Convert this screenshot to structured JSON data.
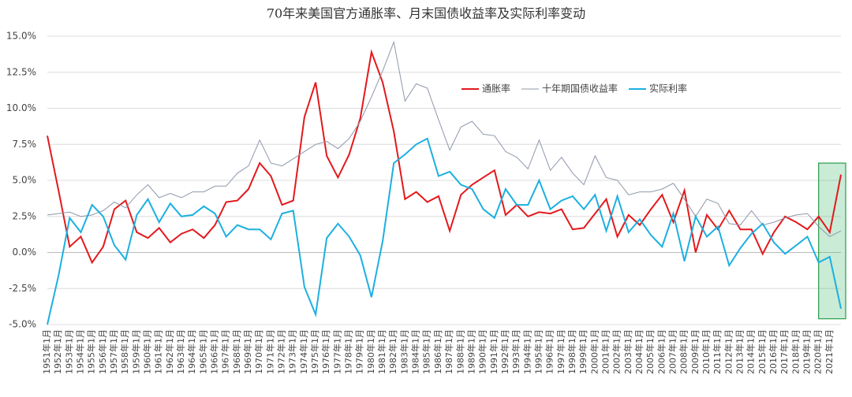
{
  "chart_data": {
    "type": "line",
    "title": "70年来美国官方通胀率、月末国债收益率及实际利率变动",
    "categories": [
      "1951年1月",
      "1952年1月",
      "1953年1月",
      "1954年1月",
      "1955年1月",
      "1956年1月",
      "1957年1月",
      "1958年1月",
      "1959年1月",
      "1960年1月",
      "1961年1月",
      "1962年1月",
      "1963年1月",
      "1964年1月",
      "1965年1月",
      "1966年1月",
      "1967年1月",
      "1968年1月",
      "1969年1月",
      "1970年1月",
      "1971年1月",
      "1972年1月",
      "1973年1月",
      "1974年1月",
      "1975年1月",
      "1976年1月",
      "1977年1月",
      "1978年1月",
      "1979年1月",
      "1980年1月",
      "1981年1月",
      "1982年1月",
      "1983年1月",
      "1984年1月",
      "1985年1月",
      "1986年1月",
      "1987年1月",
      "1988年1月",
      "1989年1月",
      "1990年1月",
      "1991年1月",
      "1992年1月",
      "1993年1月",
      "1994年1月",
      "1995年1月",
      "1996年1月",
      "1997年1月",
      "1998年1月",
      "1999年1月",
      "2000年1月",
      "2001年1月",
      "2002年1月",
      "2003年1月",
      "2004年1月",
      "2005年1月",
      "2006年1月",
      "2007年1月",
      "2008年1月",
      "2009年1月",
      "2010年1月",
      "2011年1月",
      "2012年1月",
      "2013年1月",
      "2014年1月",
      "2015年1月",
      "2016年1月",
      "2017年1月",
      "2018年1月",
      "2019年1月",
      "2020年1月",
      "2021年1月",
      null
    ],
    "series": [
      {
        "name": "通胀率",
        "color": "#e3191c",
        "values": [
          8.1,
          4.3,
          0.4,
          1.1,
          -0.7,
          0.4,
          3.0,
          3.6,
          1.4,
          1.0,
          1.7,
          0.7,
          1.3,
          1.6,
          1.0,
          1.9,
          3.5,
          3.6,
          4.4,
          6.2,
          5.3,
          3.3,
          3.6,
          9.4,
          11.8,
          6.7,
          5.2,
          6.8,
          9.3,
          13.9,
          11.8,
          8.4,
          3.7,
          4.2,
          3.5,
          3.9,
          1.5,
          4.0,
          4.7,
          5.2,
          5.7,
          2.6,
          3.3,
          2.5,
          2.8,
          2.7,
          3.0,
          1.6,
          1.7,
          2.7,
          3.7,
          1.1,
          2.6,
          1.9,
          3.0,
          4.0,
          2.1,
          4.3,
          0.0,
          2.6,
          1.6,
          2.9,
          1.6,
          1.6,
          -0.1,
          1.4,
          2.5,
          2.1,
          1.6,
          2.5,
          1.4,
          5.4
        ]
      },
      {
        "name": "十年期国债收益率",
        "color": "#8e98aa",
        "values": [
          2.6,
          2.7,
          2.8,
          2.5,
          2.6,
          2.9,
          3.5,
          3.1,
          4.0,
          4.7,
          3.8,
          4.1,
          3.8,
          4.2,
          4.2,
          4.6,
          4.6,
          5.5,
          6.0,
          7.8,
          6.2,
          6.0,
          6.5,
          7.0,
          7.5,
          7.7,
          7.2,
          7.9,
          9.1,
          10.8,
          12.6,
          14.6,
          10.5,
          11.7,
          11.4,
          9.2,
          7.1,
          8.7,
          9.1,
          8.2,
          8.1,
          7.0,
          6.6,
          5.8,
          7.8,
          5.7,
          6.6,
          5.5,
          4.7,
          6.7,
          5.2,
          5.0,
          4.0,
          4.2,
          4.2,
          4.4,
          4.8,
          3.7,
          2.5,
          3.7,
          3.4,
          2.0,
          1.9,
          2.9,
          1.9,
          2.1,
          2.4,
          2.6,
          2.7,
          1.8,
          1.1,
          1.5
        ]
      },
      {
        "name": "实际利率",
        "color": "#1cb0e0",
        "values": [
          -5.0,
          -1.6,
          2.4,
          1.4,
          3.3,
          2.5,
          0.5,
          -0.5,
          2.6,
          3.7,
          2.1,
          3.4,
          2.5,
          2.6,
          3.2,
          2.7,
          1.1,
          1.9,
          1.6,
          1.6,
          0.9,
          2.7,
          2.9,
          -2.4,
          -4.3,
          1.0,
          2.0,
          1.1,
          -0.2,
          -3.1,
          0.8,
          6.2,
          6.8,
          7.5,
          7.9,
          5.3,
          5.6,
          4.7,
          4.4,
          3.0,
          2.4,
          4.4,
          3.3,
          3.3,
          5.0,
          3.0,
          3.6,
          3.9,
          3.0,
          4.0,
          1.5,
          3.9,
          1.4,
          2.3,
          1.2,
          0.4,
          2.7,
          -0.6,
          2.5,
          1.1,
          1.8,
          -0.9,
          0.3,
          1.3,
          2.0,
          0.7,
          -0.1,
          0.5,
          1.1,
          -0.7,
          -0.3,
          -3.9
        ]
      }
    ],
    "ylim": [
      -5,
      15
    ],
    "yticks": [
      {
        "value": -5,
        "label": "-5.0%"
      },
      {
        "value": -2.5,
        "label": "-2.5%"
      },
      {
        "value": 0,
        "label": "0.0%"
      },
      {
        "value": 2.5,
        "label": "2.5%"
      },
      {
        "value": 5,
        "label": "5.0%"
      },
      {
        "value": 7.5,
        "label": "7.5%"
      },
      {
        "value": 10,
        "label": "10.0%"
      },
      {
        "value": 12.5,
        "label": "12.5%"
      },
      {
        "value": 15,
        "label": "15.0%"
      }
    ],
    "grid": true
  }
}
